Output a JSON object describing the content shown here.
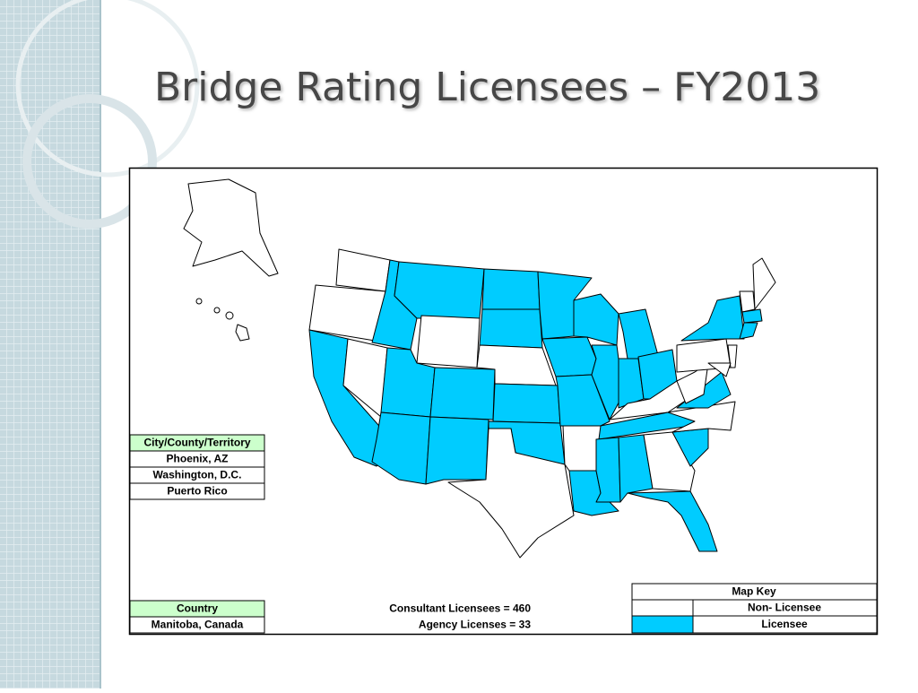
{
  "header": {
    "title": "Bridge Rating Licensees – FY2013"
  },
  "city_table": {
    "header": "City/County/Territory",
    "rows": [
      "Phoenix, AZ",
      "Washington, D.C.",
      "Puerto Rico"
    ]
  },
  "country_table": {
    "header": "Country",
    "rows": [
      "Manitoba, Canada"
    ]
  },
  "stats": [
    "Consultant Licensees = 460",
    "Agency Licenses = 33"
  ],
  "map_key": {
    "title": "Map Key",
    "entries": [
      "Non- Licensee",
      "Licensee"
    ]
  }
}
